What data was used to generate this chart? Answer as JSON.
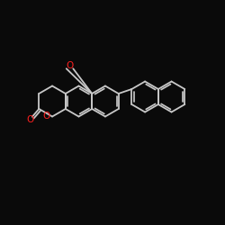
{
  "bg": "#0a0a0a",
  "bond_color": "#c8c8c8",
  "O_color": "#ff2020",
  "figsize": [
    2.5,
    2.5
  ],
  "dpi": 100,
  "xlim": [
    0,
    10
  ],
  "ylim": [
    0,
    10
  ],
  "lw": 1.3
}
